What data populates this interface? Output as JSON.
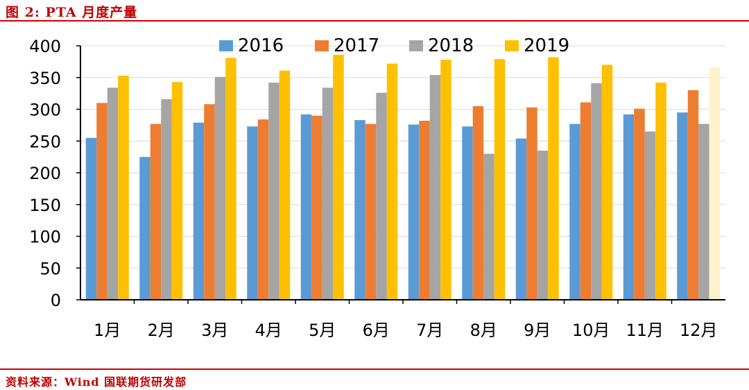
{
  "header": {
    "title": "图 2: PTA 月度产量"
  },
  "footer": {
    "source": "资料来源：Wind 国联期货研发部"
  },
  "chart_data": {
    "type": "bar",
    "title": "",
    "xlabel": "",
    "ylabel": "",
    "ylim": [
      0,
      400
    ],
    "yticks": [
      0,
      50,
      100,
      150,
      200,
      250,
      300,
      350,
      400
    ],
    "grid": true,
    "legend_position": "top",
    "categories": [
      "1月",
      "2月",
      "3月",
      "4月",
      "5月",
      "6月",
      "7月",
      "8月",
      "9月",
      "10月",
      "11月",
      "12月"
    ],
    "series": [
      {
        "name": "2016",
        "color": "#5b9bd5",
        "values": [
          255,
          225,
          279,
          273,
          292,
          283,
          276,
          273,
          254,
          277,
          292,
          295
        ]
      },
      {
        "name": "2017",
        "color": "#ed7d31",
        "values": [
          310,
          277,
          308,
          284,
          290,
          277,
          282,
          305,
          303,
          311,
          301,
          330
        ]
      },
      {
        "name": "2018",
        "color": "#a5a5a5",
        "values": [
          334,
          316,
          351,
          342,
          334,
          326,
          354,
          230,
          235,
          341,
          265,
          277
        ]
      },
      {
        "name": "2019",
        "color": "#ffc000",
        "values": [
          353,
          343,
          381,
          361,
          386,
          372,
          378,
          379,
          382,
          370,
          342,
          366
        ]
      }
    ],
    "highlighted_bars": [
      {
        "series": "2019",
        "category": "12月",
        "color": "#fff2cc"
      }
    ]
  }
}
